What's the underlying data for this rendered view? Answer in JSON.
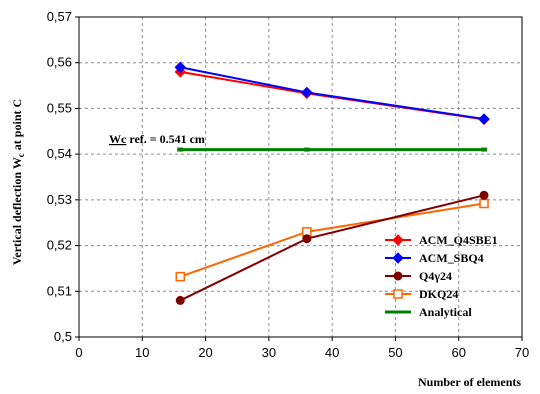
{
  "chart_data": {
    "type": "line",
    "title": "",
    "xlabel": "Number of elements",
    "ylabel": "Vertical deflection W",
    "ylabel_subscript": "c",
    "ylabel_suffix": " at  point C",
    "xlim": [
      0,
      70
    ],
    "ylim": [
      0.5,
      0.57
    ],
    "x_ticks": [
      "0",
      "10",
      "20",
      "30",
      "40",
      "50",
      "60",
      "70"
    ],
    "y_ticks": [
      "0,5",
      "0,51",
      "0,52",
      "0,53",
      "0,54",
      "0,55",
      "0,56",
      "0,57"
    ],
    "grid": true,
    "legend_position": "bottom-right",
    "annotation": {
      "prefix": "Wc",
      "text": " ref. = 0.541 cm"
    },
    "series": [
      {
        "name": "ACM_Q4SBE1",
        "color": "#ff0000",
        "marker": "diamond",
        "x": [
          16,
          36,
          64
        ],
        "y": [
          0.558,
          0.5533,
          0.5476
        ]
      },
      {
        "name": "ACM_SBQ4",
        "color": "#0000ff",
        "marker": "diamond",
        "x": [
          16,
          36,
          64
        ],
        "y": [
          0.559,
          0.5535,
          0.5477
        ]
      },
      {
        "name": "Q4γ24",
        "color": "#800000",
        "marker": "circle",
        "x": [
          16,
          36,
          64
        ],
        "y": [
          0.508,
          0.5215,
          0.531
        ]
      },
      {
        "name": "DKQ24",
        "color": "#ff6600",
        "marker": "square-open",
        "x": [
          16,
          36,
          64
        ],
        "y": [
          0.5132,
          0.523,
          0.5292
        ]
      },
      {
        "name": "Analytical",
        "color": "#008000",
        "marker": "none",
        "x": [
          16,
          36,
          64
        ],
        "y": [
          0.541,
          0.541,
          0.541
        ]
      }
    ]
  }
}
